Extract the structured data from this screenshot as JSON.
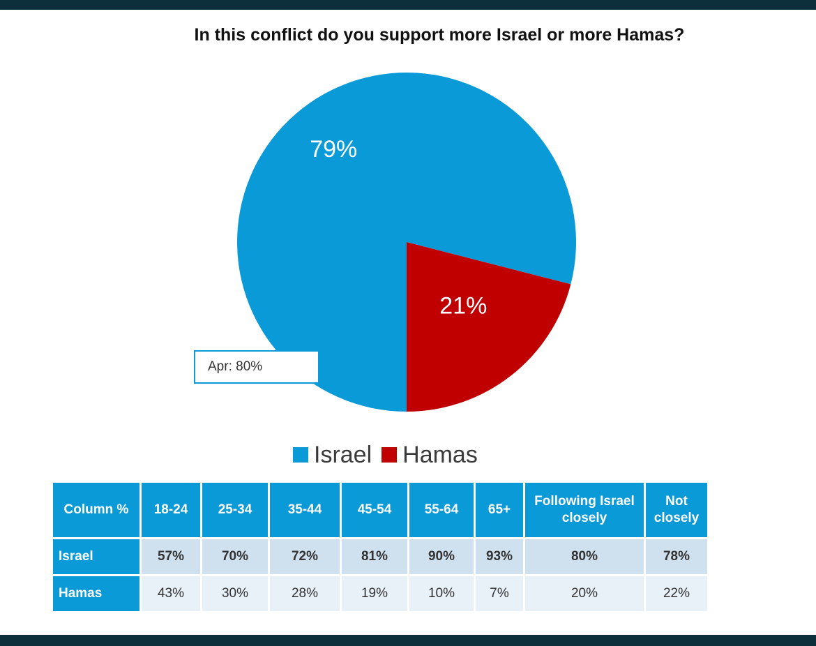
{
  "title": "In this conflict do you support more Israel or more Hamas?",
  "chart_data": [
    {
      "type": "pie",
      "title": "In this conflict do you support more Israel or more Hamas?",
      "categories": [
        "Israel",
        "Hamas"
      ],
      "values": [
        79,
        21
      ],
      "labels": [
        "79%",
        "21%"
      ],
      "colors": [
        "#0a9ad8",
        "#c00000"
      ],
      "legend": "bottom",
      "annotation": "Apr: 80%"
    },
    {
      "type": "table",
      "columns": [
        "Column %",
        "18-24",
        "25-34",
        "35-44",
        "45-54",
        "55-64",
        "65+",
        "Following Israel closely",
        "Not closely"
      ],
      "rows": [
        {
          "label": "Israel",
          "values": [
            "57%",
            "70%",
            "72%",
            "81%",
            "90%",
            "93%",
            "80%",
            "78%"
          ]
        },
        {
          "label": "Hamas",
          "values": [
            "43%",
            "30%",
            "28%",
            "19%",
            "10%",
            "7%",
            "20%",
            "22%"
          ]
        }
      ]
    }
  ],
  "legend": [
    {
      "label": "Israel",
      "color": "#0a9ad8"
    },
    {
      "label": "Hamas",
      "color": "#c00000"
    }
  ]
}
